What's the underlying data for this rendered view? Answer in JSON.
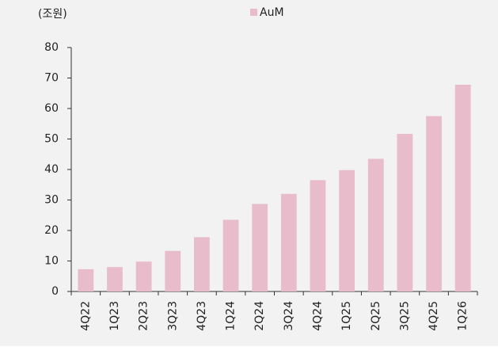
{
  "chart_data": {
    "type": "bar",
    "y_label": "(조원)",
    "categories": [
      "4Q22",
      "1Q23",
      "2Q23",
      "3Q23",
      "4Q23",
      "1Q24",
      "2Q24",
      "3Q24",
      "4Q24",
      "1Q25",
      "2Q25",
      "3Q25",
      "4Q25",
      "1Q26"
    ],
    "series": [
      {
        "name": "AuM",
        "color": "#e8bccb",
        "values": [
          7.3,
          8,
          9.8,
          13.3,
          17.8,
          23.5,
          28.7,
          32,
          36.5,
          39.8,
          43.5,
          51.7,
          57.5,
          67.8
        ]
      }
    ],
    "ylim": [
      0,
      80
    ],
    "yticks": [
      0,
      10,
      20,
      30,
      40,
      50,
      60,
      70,
      80
    ],
    "legend": "top"
  }
}
